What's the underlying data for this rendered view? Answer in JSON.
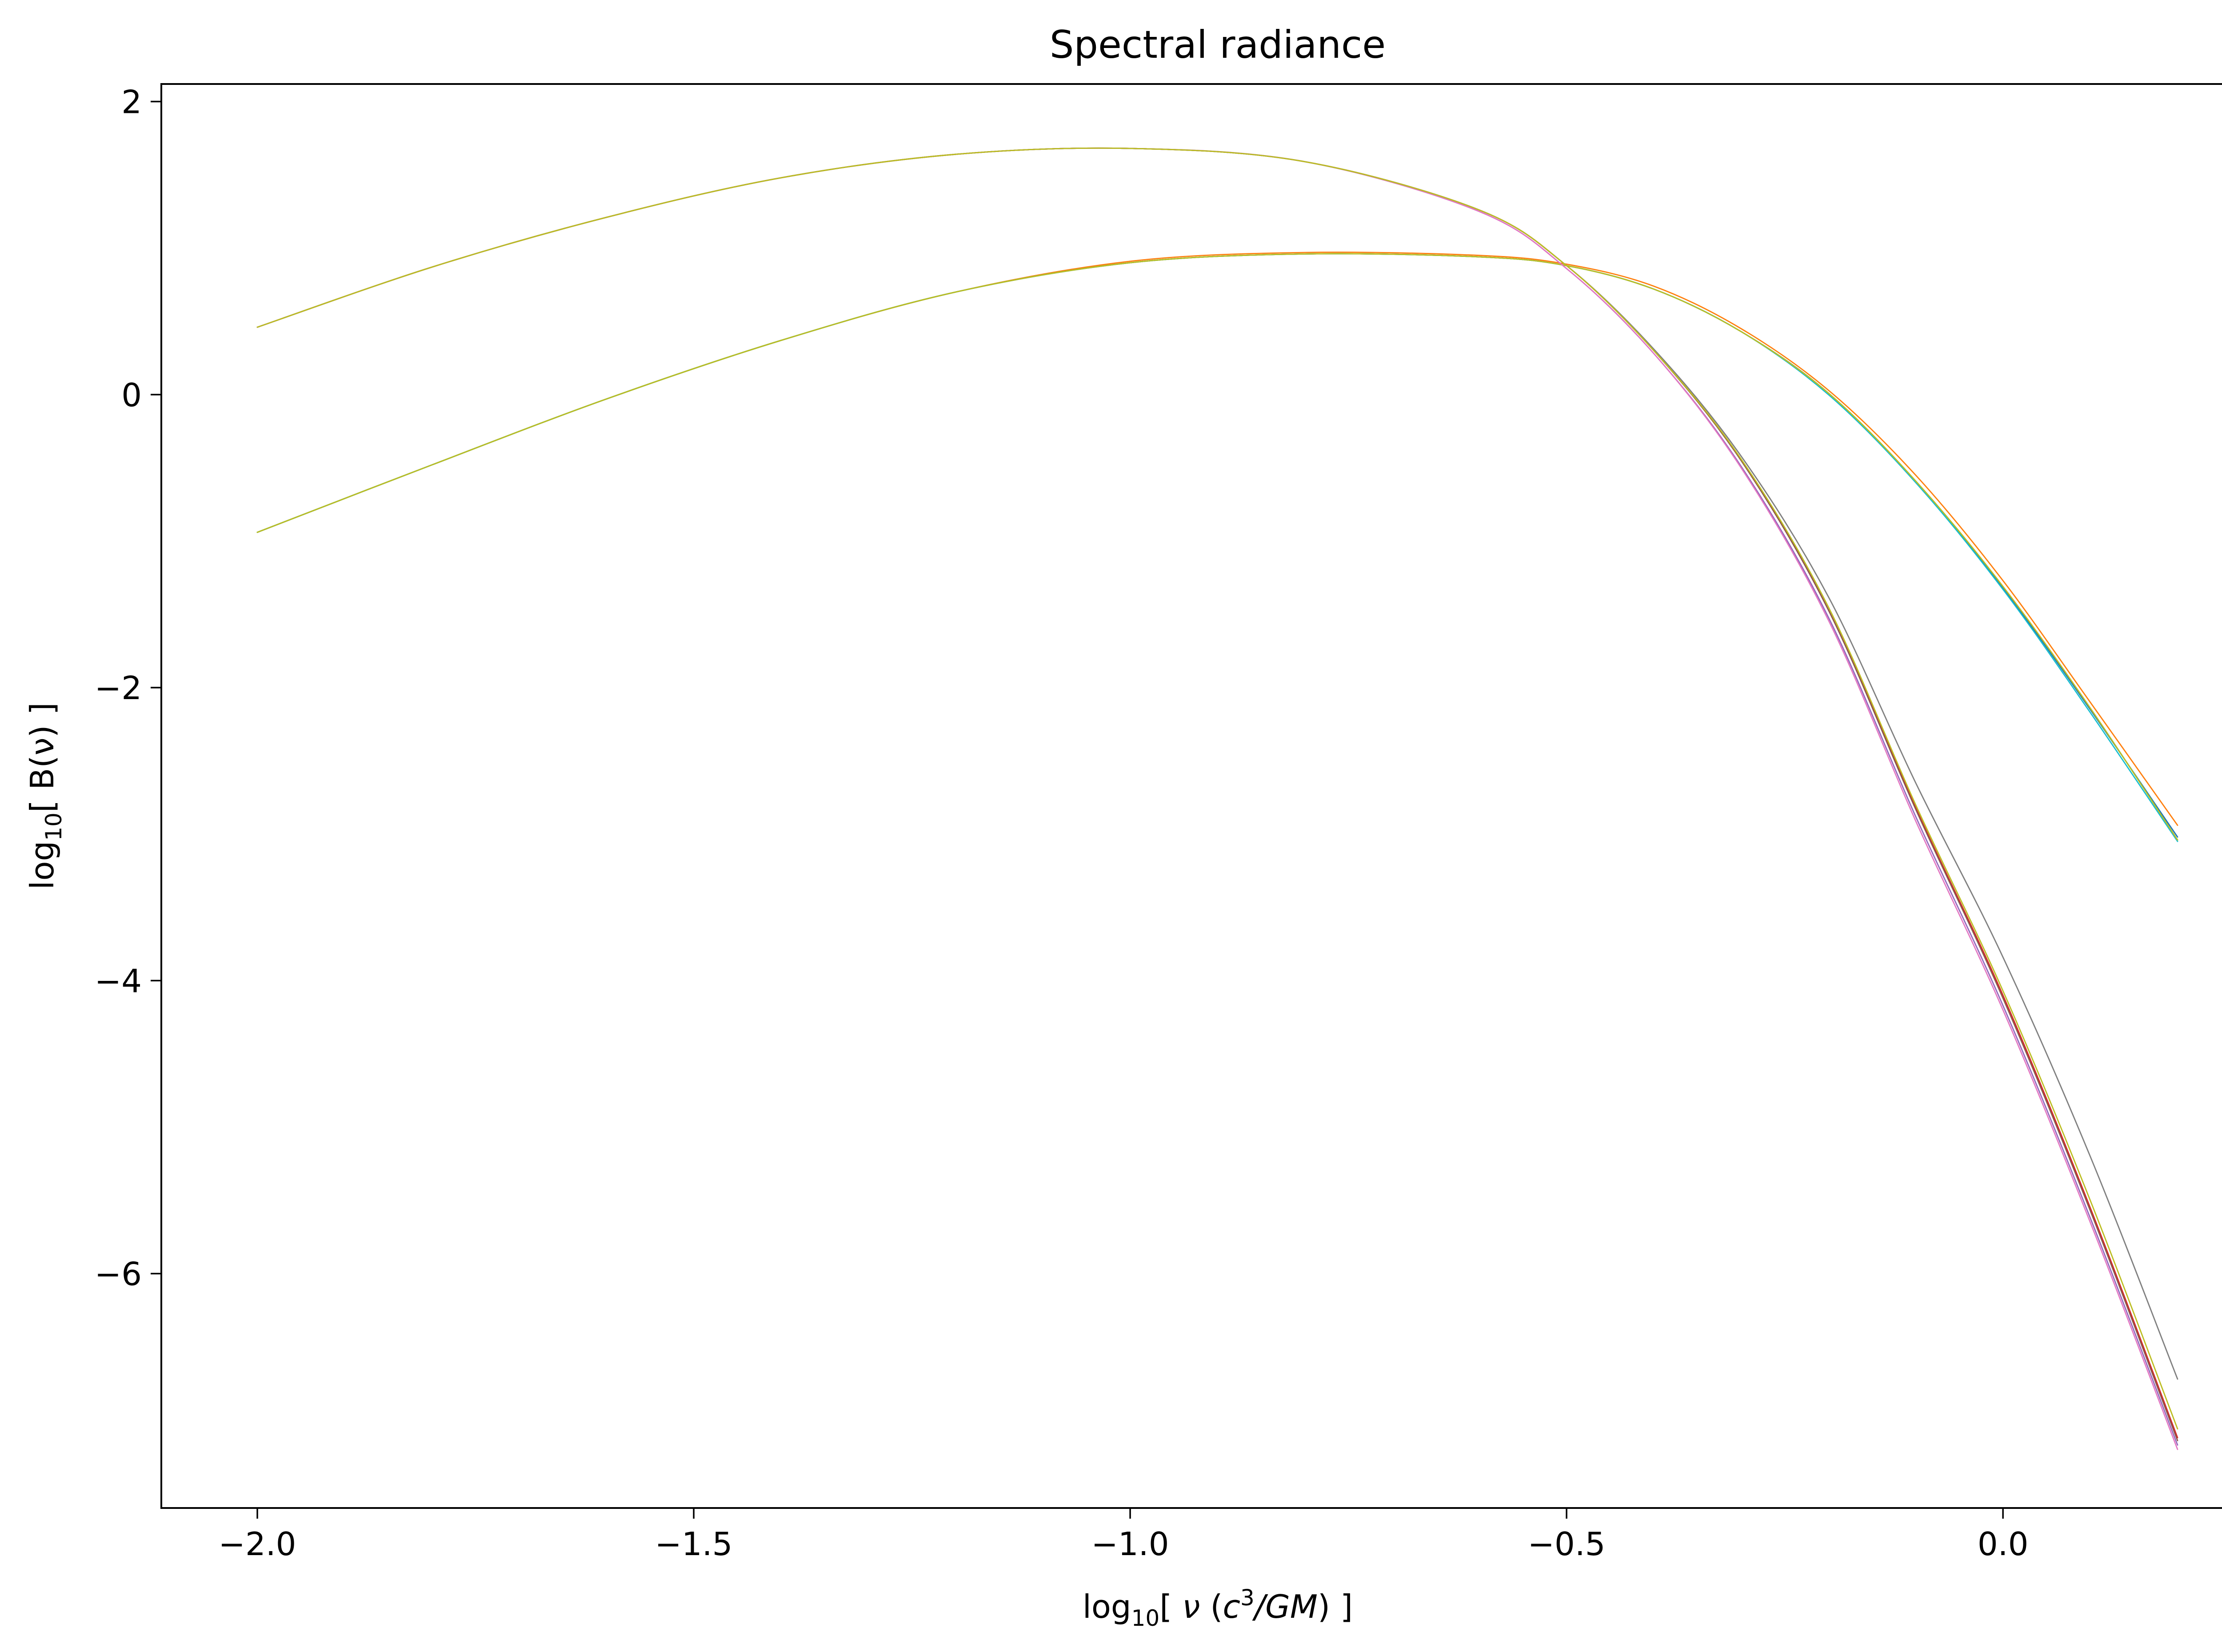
{
  "chart_data": {
    "type": "line",
    "title": "Spectral radiance",
    "xlabel": {
      "prefix": "log",
      "sub": "10",
      "open": "[ ",
      "nu": "ν",
      "paren_open": " (",
      "c": "c",
      "sup": "3",
      "rest": "/GM",
      "close": ") ]"
    },
    "ylabel": {
      "prefix": "log",
      "sub": "10",
      "rest": "[ B(ν) ]"
    },
    "xlim": [
      -2.11,
      0.31
    ],
    "ylim": [
      -7.6,
      2.12
    ],
    "xticks": [
      {
        "value": -2.0,
        "label": "−2.0"
      },
      {
        "value": -1.5,
        "label": "−1.5"
      },
      {
        "value": -1.0,
        "label": "−1.0"
      },
      {
        "value": -0.5,
        "label": "−0.5"
      },
      {
        "value": 0.0,
        "label": "0.0"
      }
    ],
    "yticks": [
      {
        "value": 2,
        "label": "2"
      },
      {
        "value": 0,
        "label": "0"
      },
      {
        "value": -2,
        "label": "−2"
      },
      {
        "value": -4,
        "label": "−4"
      },
      {
        "value": -6,
        "label": "−6"
      }
    ],
    "grid": false,
    "legend": {
      "placement": "top-right",
      "entries": []
    },
    "x": [
      -2.0,
      -1.8,
      -1.6,
      -1.4,
      -1.2,
      -1.0,
      -0.8,
      -0.6,
      -0.5,
      -0.4,
      -0.3,
      -0.2,
      -0.1,
      0.0,
      0.1,
      0.2
    ],
    "series": [
      {
        "color": "#1f77b4",
        "values": [
          -0.94,
          -0.48,
          -0.03,
          0.37,
          0.7,
          0.9,
          0.96,
          0.94,
          0.88,
          0.72,
          0.43,
          0.01,
          -0.6,
          -1.32,
          -2.15,
          -3.02
        ]
      },
      {
        "color": "#ff7f0e",
        "values": [
          -0.94,
          -0.48,
          -0.03,
          0.37,
          0.7,
          0.91,
          0.97,
          0.95,
          0.89,
          0.74,
          0.45,
          0.03,
          -0.55,
          -1.27,
          -2.1,
          -2.94
        ]
      },
      {
        "color": "#2ca02c",
        "values": [
          -0.94,
          -0.48,
          -0.03,
          0.37,
          0.7,
          0.9,
          0.96,
          0.94,
          0.88,
          0.72,
          0.43,
          0.01,
          -0.59,
          -1.31,
          -2.14,
          -3.04
        ]
      },
      {
        "color": "#17becf",
        "values": [
          -0.94,
          -0.48,
          -0.03,
          0.37,
          0.7,
          0.9,
          0.96,
          0.94,
          0.88,
          0.72,
          0.43,
          0.0,
          -0.6,
          -1.33,
          -2.17,
          -3.05
        ]
      },
      {
        "color": "#bcbd22",
        "values": [
          -0.94,
          -0.48,
          -0.03,
          0.37,
          0.7,
          0.9,
          0.96,
          0.94,
          0.88,
          0.72,
          0.43,
          0.01,
          -0.59,
          -1.31,
          -2.14,
          -3.04
        ]
      },
      {
        "color": "#d62728",
        "values": [
          0.46,
          0.87,
          1.21,
          1.48,
          1.64,
          1.68,
          1.59,
          1.26,
          0.88,
          0.3,
          -0.45,
          -1.47,
          -2.82,
          -4.1,
          -5.55,
          -7.12
        ]
      },
      {
        "color": "#9467bd",
        "values": [
          0.46,
          0.87,
          1.21,
          1.48,
          1.64,
          1.68,
          1.59,
          1.25,
          0.86,
          0.28,
          -0.49,
          -1.52,
          -2.88,
          -4.17,
          -5.62,
          -7.17
        ]
      },
      {
        "color": "#8c564b",
        "values": [
          0.46,
          0.87,
          1.21,
          1.48,
          1.64,
          1.68,
          1.59,
          1.26,
          0.88,
          0.3,
          -0.45,
          -1.47,
          -2.83,
          -4.12,
          -5.57,
          -7.14
        ]
      },
      {
        "color": "#e377c2",
        "values": [
          0.46,
          0.87,
          1.21,
          1.48,
          1.64,
          1.68,
          1.59,
          1.25,
          0.86,
          0.28,
          -0.5,
          -1.54,
          -2.91,
          -4.2,
          -5.65,
          -7.2
        ]
      },
      {
        "color": "#7f7f7f",
        "values": [
          0.46,
          0.87,
          1.21,
          1.48,
          1.64,
          1.68,
          1.59,
          1.26,
          0.88,
          0.31,
          -0.42,
          -1.38,
          -2.65,
          -3.84,
          -5.2,
          -6.72
        ]
      },
      {
        "color": "#bcbd22",
        "values": [
          0.46,
          0.87,
          1.21,
          1.48,
          1.64,
          1.68,
          1.59,
          1.26,
          0.88,
          0.3,
          -0.44,
          -1.45,
          -2.8,
          -4.07,
          -5.5,
          -7.06
        ]
      }
    ]
  }
}
